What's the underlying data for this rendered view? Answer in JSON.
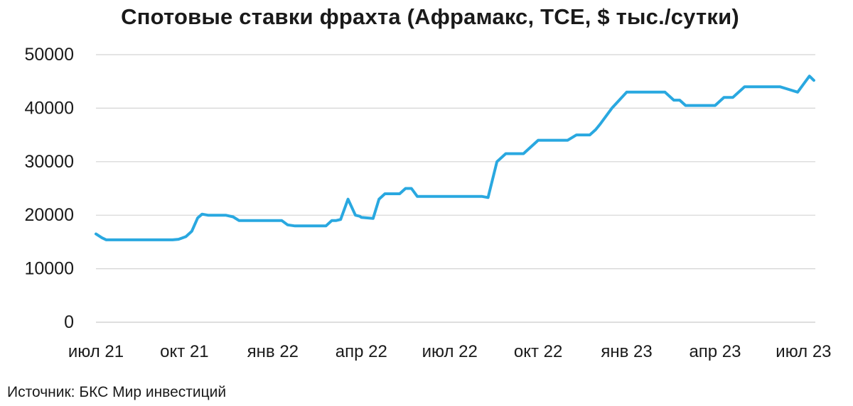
{
  "chart_data": {
    "type": "line",
    "title": "Спотовые ставки фрахта (Афрамакс, TCE, $ тыс./сутки)",
    "xlabel": "",
    "ylabel": "",
    "ylim": [
      0,
      50000
    ],
    "yticks": [
      0,
      10000,
      20000,
      30000,
      40000,
      50000
    ],
    "ytick_labels": [
      "0",
      "10000",
      "20000",
      "30000",
      "40000",
      "50000"
    ],
    "xlim": [
      0,
      24.4
    ],
    "xticks": [
      0,
      3,
      6,
      9,
      12,
      15,
      18,
      21,
      24
    ],
    "xtick_labels": [
      "июл 21",
      "окт 21",
      "янв 22",
      "апр 22",
      "июл 22",
      "окт 22",
      "янв 23",
      "апр 23",
      "июл 23"
    ],
    "grid": "horizontal",
    "line_color": "#29a8e0",
    "grid_color": "#d4d4d4",
    "series": [
      {
        "x": [
          0,
          0.2,
          0.35,
          1,
          2,
          2.6,
          2.8,
          3.05,
          3.25,
          3.45,
          3.6,
          3.8,
          4,
          4.4,
          4.65,
          4.85,
          5,
          6,
          6.3,
          6.5,
          6.75,
          7,
          7.3,
          7.5,
          7.8,
          8,
          8.15,
          8.3,
          8.55,
          8.8,
          8.95,
          9,
          9.2,
          9.4,
          9.6,
          9.8,
          10.1,
          10.3,
          10.5,
          10.7,
          10.9,
          11.2,
          11.5,
          11.8,
          12,
          12.15,
          12.3,
          12.45,
          12.65,
          12.9,
          13.1,
          13.3,
          13.6,
          13.9,
          14.2,
          14.5,
          15,
          15.2,
          15.4,
          15.6,
          15.8,
          16,
          16.3,
          16.5,
          16.75,
          16.95,
          17.1,
          17.5,
          18,
          18.2,
          18.4,
          18.6,
          18.8,
          19,
          19.3,
          19.6,
          19.8,
          20,
          20.2,
          20.4,
          20.7,
          21,
          21.3,
          21.6,
          22,
          22.3,
          22.6,
          22.9,
          23.2,
          23.5,
          23.8,
          24,
          24.2,
          24.35
        ],
        "values": [
          16500,
          15800,
          15400,
          15400,
          15400,
          15400,
          15500,
          16000,
          17000,
          19500,
          20200,
          20000,
          20000,
          20000,
          19700,
          19000,
          19000,
          19000,
          19000,
          18200,
          18000,
          18000,
          18000,
          18000,
          18000,
          19000,
          19000,
          19200,
          23000,
          20000,
          19800,
          19600,
          19500,
          19400,
          23000,
          24000,
          24000,
          24000,
          25000,
          25000,
          23500,
          23500,
          23500,
          23500,
          23500,
          23500,
          23500,
          23500,
          23500,
          23500,
          23500,
          23300,
          30000,
          31500,
          31500,
          31500,
          34000,
          34000,
          34000,
          34000,
          34000,
          34000,
          35000,
          35000,
          35000,
          36000,
          37000,
          40000,
          43000,
          43000,
          43000,
          43000,
          43000,
          43000,
          43000,
          41500,
          41500,
          40500,
          40500,
          40500,
          40500,
          40500,
          42000,
          42000,
          44000,
          44000,
          44000,
          44000,
          44000,
          43500,
          43000,
          44500,
          46000,
          45200
        ]
      }
    ]
  },
  "source_text": "Источник: БКС Мир инвестиций"
}
